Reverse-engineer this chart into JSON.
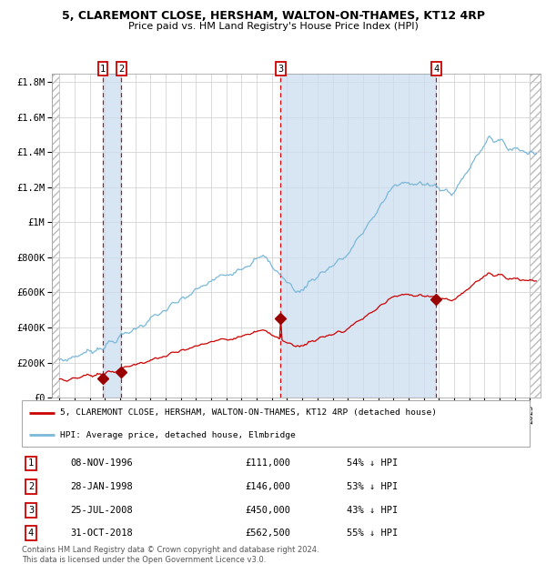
{
  "title_line1": "5, CLAREMONT CLOSE, HERSHAM, WALTON-ON-THAMES, KT12 4RP",
  "title_line2": "Price paid vs. HM Land Registry's House Price Index (HPI)",
  "purchases": [
    {
      "num": 1,
      "date": "08-NOV-1996",
      "date_x": 1996.86,
      "price": 111000,
      "label": "1"
    },
    {
      "num": 2,
      "date": "28-JAN-1998",
      "date_x": 1998.08,
      "price": 146000,
      "label": "2"
    },
    {
      "num": 3,
      "date": "25-JUL-2008",
      "date_x": 2008.56,
      "price": 450000,
      "label": "3"
    },
    {
      "num": 4,
      "date": "31-OCT-2018",
      "date_x": 2018.83,
      "price": 562500,
      "label": "4"
    }
  ],
  "table_rows": [
    {
      "num": "1",
      "date": "08-NOV-1996",
      "price": "£111,000",
      "pct": "54% ↓ HPI"
    },
    {
      "num": "2",
      "date": "28-JAN-1998",
      "price": "£146,000",
      "pct": "53% ↓ HPI"
    },
    {
      "num": "3",
      "date": "25-JUL-2008",
      "price": "£450,000",
      "pct": "43% ↓ HPI"
    },
    {
      "num": "4",
      "date": "31-OCT-2018",
      "price": "£562,500",
      "pct": "55% ↓ HPI"
    }
  ],
  "legend_line1": "5, CLAREMONT CLOSE, HERSHAM, WALTON-ON-THAMES, KT12 4RP (detached house)",
  "legend_line2": "HPI: Average price, detached house, Elmbridge",
  "footer": "Contains HM Land Registry data © Crown copyright and database right 2024.\nThis data is licensed under the Open Government Licence v3.0.",
  "hpi_color": "#7ab8d9",
  "price_color": "#cc0000",
  "marker_color": "#990000",
  "vline_color": "#dd0000",
  "shade_color": "#ccddf0",
  "grid_color": "#cccccc",
  "ylim": [
    0,
    1850000
  ],
  "xlim_start": 1993.5,
  "xlim_end": 2025.7
}
